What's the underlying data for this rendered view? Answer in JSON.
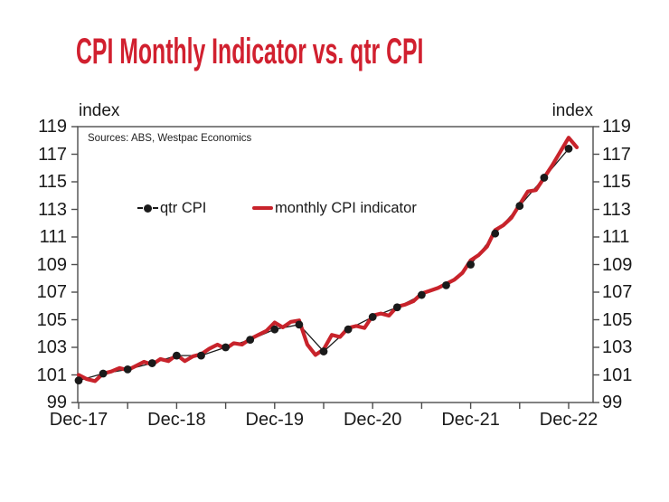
{
  "title": "CPI Monthly Indicator vs. qtr CPI",
  "source_note": "Sources: ABS, Westpac Economics",
  "axis": {
    "unit_label_left": "index",
    "unit_label_right": "index"
  },
  "legend": {
    "qtr_label": "qtr CPI",
    "monthly_label": "monthly CPI indicator"
  },
  "colors": {
    "title_red": "#d1202f",
    "line_red": "#c8232b",
    "series_black": "#1a1a1a",
    "axis_gray": "#4d4d4d"
  },
  "chart_data": {
    "type": "line",
    "title": "CPI Monthly Indicator vs. qtr CPI",
    "ylabel": "index",
    "xlabel": "",
    "ylim": [
      99,
      119
    ],
    "y_ticks": [
      99,
      101,
      103,
      105,
      107,
      109,
      111,
      113,
      115,
      117,
      119
    ],
    "y_tick_sides": "both",
    "x_tick_labels": [
      "Dec-17",
      "Dec-18",
      "Dec-19",
      "Dec-20",
      "Dec-21",
      "Dec-22"
    ],
    "x_minor_ticks": "unlabeled ticks each June (every 6 months)",
    "grid": false,
    "legend_position": "inside upper-left",
    "series": [
      {
        "name": "qtr CPI",
        "style": "thin black line with filled circle markers",
        "color": "#1a1a1a",
        "frequency": "quarterly",
        "labels": [
          "Dec-17",
          "Mar-18",
          "Jun-18",
          "Sep-18",
          "Dec-18",
          "Mar-19",
          "Jun-19",
          "Sep-19",
          "Dec-19",
          "Mar-20",
          "Jun-20",
          "Sep-20",
          "Dec-20",
          "Mar-21",
          "Jun-21",
          "Sep-21",
          "Dec-21",
          "Mar-22",
          "Jun-22",
          "Sep-22",
          "Dec-22"
        ],
        "values": [
          100.6,
          101.1,
          101.4,
          101.85,
          102.4,
          102.4,
          103.0,
          103.55,
          104.3,
          104.65,
          102.7,
          104.3,
          105.2,
          105.9,
          106.8,
          107.5,
          109.0,
          111.25,
          113.25,
          115.3,
          117.4
        ]
      },
      {
        "name": "monthly CPI indicator",
        "style": "thick red line, no markers",
        "color": "#c8232b",
        "frequency": "monthly",
        "start": "Dec-17",
        "end": "Jan-23",
        "values": [
          101.0,
          100.7,
          100.55,
          101.1,
          101.25,
          101.5,
          101.35,
          101.65,
          101.95,
          101.75,
          102.15,
          102.0,
          102.45,
          102.0,
          102.35,
          102.5,
          102.9,
          103.2,
          102.9,
          103.3,
          103.2,
          103.6,
          103.9,
          104.2,
          104.8,
          104.45,
          104.85,
          104.95,
          103.2,
          102.45,
          102.85,
          103.9,
          103.75,
          104.4,
          104.55,
          104.4,
          105.3,
          105.45,
          105.3,
          105.95,
          106.1,
          106.35,
          106.9,
          107.1,
          107.3,
          107.6,
          107.9,
          108.4,
          109.3,
          109.7,
          110.3,
          111.5,
          111.85,
          112.4,
          113.35,
          114.3,
          114.4,
          115.3,
          116.2,
          117.2,
          118.2,
          117.5
        ]
      }
    ]
  }
}
